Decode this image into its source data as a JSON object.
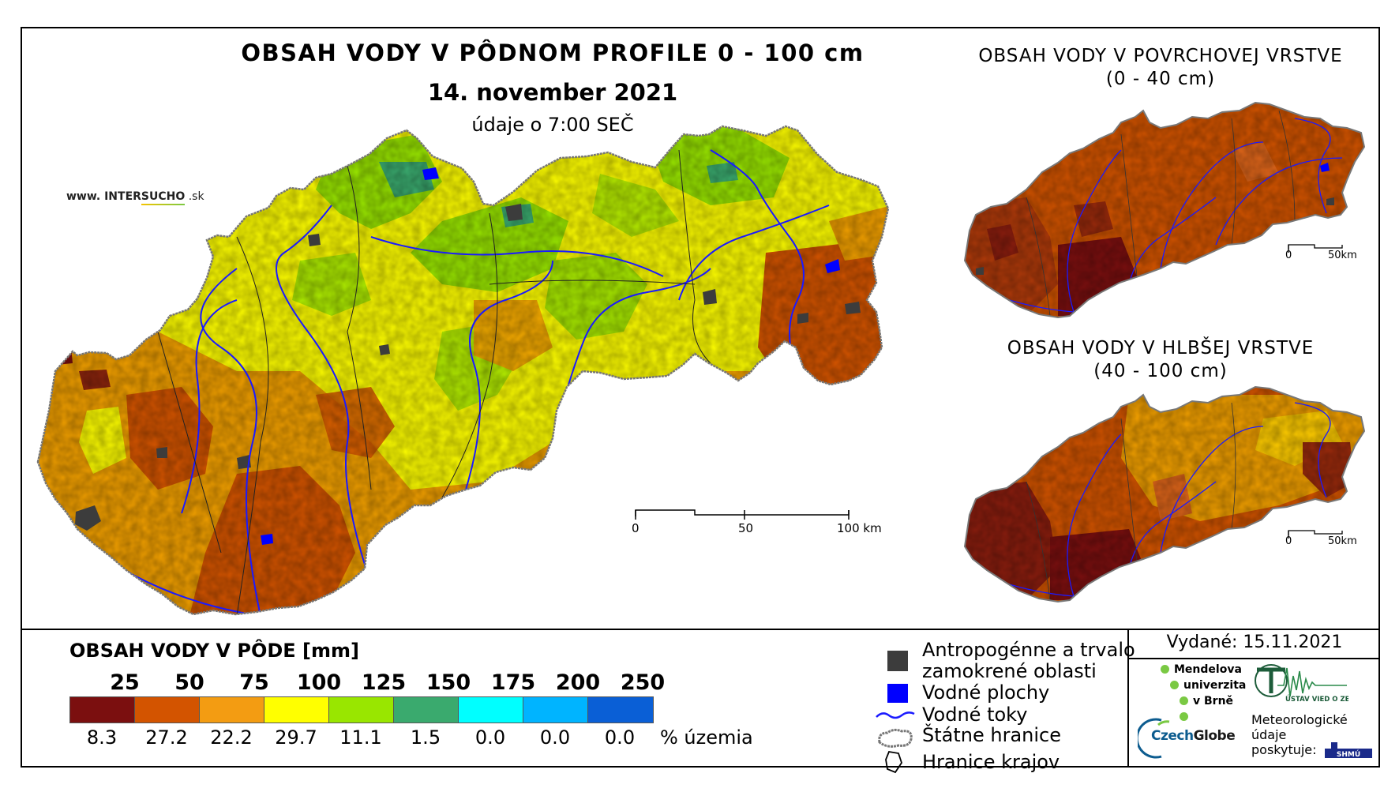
{
  "title": "OBSAH VODY V PÔDNOM PROFILE 0 - 100 cm",
  "date": "14. november 2021",
  "time_note": "údaje o 7:00 SEČ",
  "website": {
    "prefix": "www. INTER",
    "mid": "SUCHO",
    "suffix": " .sk"
  },
  "inset_surface": {
    "title_line1": "OBSAH VODY V POVRCHOVEJ VRSTVE",
    "title_line2": "(0 - 40 cm)"
  },
  "inset_deep": {
    "title_line1": "OBSAH VODY V HLBŠEJ VRSTVE",
    "title_line2": "(40 - 100 cm)"
  },
  "main_scale": {
    "labels": [
      "0",
      "50",
      "100 km"
    ]
  },
  "inset_scale": {
    "labels": [
      "0",
      "50km"
    ]
  },
  "legend": {
    "title": "OBSAH VODY V PÔDE [mm]",
    "thresholds": [
      "25",
      "50",
      "75",
      "100",
      "125",
      "150",
      "175",
      "200",
      "250"
    ],
    "colors": [
      "#7b0f0f",
      "#d35400",
      "#f39c12",
      "#ffff00",
      "#99e600",
      "#3aaa6e",
      "#00ffff",
      "#00b4ff",
      "#0a5fd6"
    ],
    "percent_territory": [
      "8.3",
      "27.2",
      "22.2",
      "29.7",
      "11.1",
      "1.5",
      "0.0",
      "0.0",
      "0.0"
    ],
    "percent_unit": "% územia"
  },
  "symbols": {
    "anthropogenic_line1": "Antropogénne a trvalo",
    "anthropogenic_line2": "zamokrené oblasti",
    "water_bodies": "Vodné plochy",
    "water_streams": "Vodné toky",
    "state_border": "Štátne hranice",
    "region_border": "Hranice krajov",
    "colors": {
      "anthropogenic": "#3c3c3c",
      "water_bodies": "#0000ff",
      "water_streams": "#1a1aff"
    }
  },
  "issued": "Vydané: 15.11.2021",
  "logos": {
    "mendel_line1": "Mendelova",
    "mendel_line2": "univerzita",
    "mendel_line3": "v Brně",
    "uvz": "ÚSTAV VIED O ZEMI",
    "czech_a": "Czech",
    "czech_b": "Globe",
    "meteo_line1": "Meteorologické",
    "meteo_line2": "údaje",
    "meteo_line3": "poskytuje:",
    "shmu": "SHMÚ"
  }
}
